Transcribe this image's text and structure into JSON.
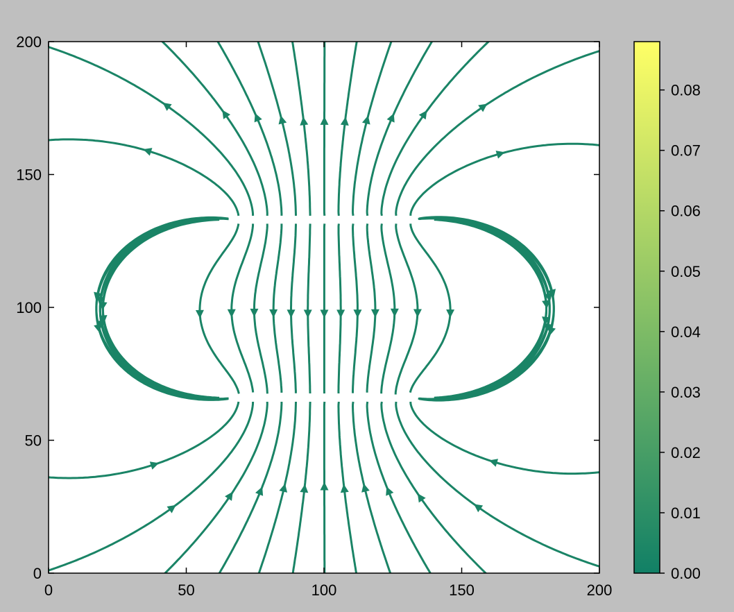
{
  "chart_data": {
    "type": "streamplot",
    "title": "",
    "xlabel": "",
    "ylabel": "",
    "xlim": [
      0,
      200
    ],
    "ylim": [
      0,
      200
    ],
    "xticks": [
      0,
      50,
      100,
      150,
      200
    ],
    "yticks": [
      0,
      50,
      100,
      150,
      200
    ],
    "colorbar": {
      "label": "",
      "range": [
        0.0,
        0.088
      ],
      "ticks": [
        0.0,
        0.01,
        0.02,
        0.03,
        0.04,
        0.05,
        0.06,
        0.07,
        0.08
      ],
      "tick_labels": [
        "0.00",
        "0.01",
        "0.02",
        "0.03",
        "0.04",
        "0.05",
        "0.06",
        "0.07",
        "0.08"
      ],
      "colormap": "summer",
      "color_low": "#118066",
      "color_high": "#ffff66"
    },
    "field": {
      "description_source": "streamlines of a parallel-plate field: two horizontal plates",
      "plates": [
        {
          "y": 133,
          "x_start": 67,
          "x_end": 133
        },
        {
          "y": 66,
          "x_start": 67,
          "x_end": 133
        }
      ]
    },
    "background_color": "#bfbfbf",
    "plot_background": "#ffffff",
    "line_color": "#1a8466"
  }
}
